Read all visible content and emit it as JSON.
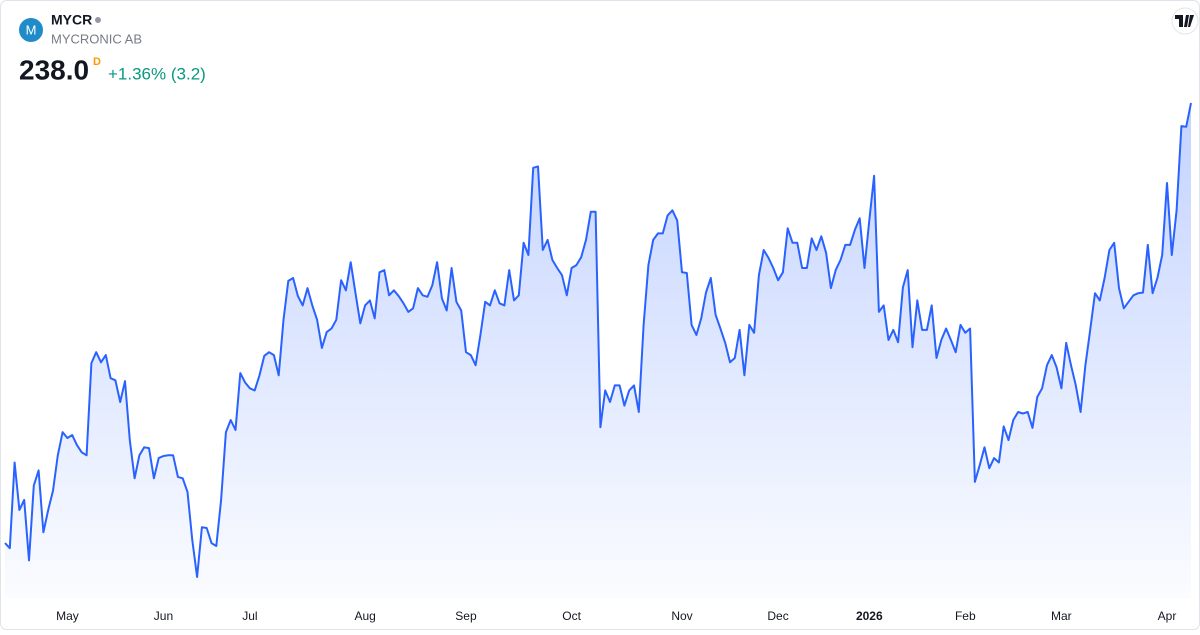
{
  "header": {
    "logo": "M",
    "symbol": "MYCR",
    "name": "MYCRONIC AB",
    "price": "238.0",
    "interval": "D",
    "change": "+1.36% (3.2)"
  },
  "chart_data": {
    "type": "area",
    "color": "#2962ff",
    "categories": [
      null,
      null,
      null,
      null,
      null,
      null,
      null,
      null,
      null,
      null,
      null,
      null,
      null,
      "May",
      null,
      null,
      null,
      null,
      null,
      null,
      null,
      null,
      null,
      null,
      null,
      null,
      null,
      null,
      null,
      null,
      null,
      null,
      null,
      "Jun",
      null,
      null,
      null,
      null,
      null,
      null,
      null,
      null,
      null,
      null,
      null,
      null,
      null,
      null,
      null,
      null,
      null,
      "Jul",
      null,
      null,
      null,
      null,
      null,
      null,
      null,
      null,
      null,
      null,
      null,
      null,
      null,
      null,
      null,
      null,
      null,
      null,
      null,
      null,
      null,
      null,
      null,
      "Aug",
      null,
      null,
      null,
      null,
      null,
      null,
      null,
      null,
      null,
      null,
      null,
      null,
      null,
      null,
      null,
      null,
      null,
      null,
      null,
      null,
      "Sep",
      null,
      null,
      null,
      null,
      null,
      null,
      null,
      null,
      null,
      null,
      null,
      null,
      null,
      null,
      null,
      null,
      null,
      null,
      null,
      null,
      null,
      "Oct",
      null,
      null,
      null,
      null,
      null,
      null,
      null,
      null,
      null,
      null,
      null,
      null,
      null,
      null,
      null,
      null,
      null,
      null,
      null,
      null,
      null,
      null,
      "Nov",
      null,
      null,
      null,
      null,
      null,
      null,
      null,
      null,
      null,
      null,
      null,
      null,
      null,
      null,
      null,
      null,
      null,
      null,
      null,
      "Dec",
      null,
      null,
      null,
      null,
      null,
      null,
      null,
      null,
      null,
      null,
      null,
      null,
      null,
      null,
      null,
      null,
      null,
      null,
      "2026",
      null,
      null,
      null,
      null,
      null,
      null,
      null,
      null,
      null,
      null,
      null,
      null,
      null,
      null,
      null,
      null,
      null,
      null,
      null,
      "Feb",
      null,
      null,
      null,
      null,
      null,
      null,
      null,
      null,
      null,
      null,
      null,
      null,
      null,
      null,
      null,
      null,
      null,
      null,
      null,
      "Mar",
      null,
      null,
      null,
      null,
      null,
      null,
      null,
      null,
      null,
      null,
      null,
      null,
      null,
      null,
      null,
      null,
      null,
      null,
      null,
      null,
      null,
      "Apr",
      null,
      null,
      null,
      null,
      null
    ],
    "values": [
      176.9,
      176.2,
      188.1,
      181.5,
      182.9,
      174.5,
      184.9,
      187.0,
      178.4,
      181.5,
      184.2,
      189.1,
      192.3,
      191.5,
      191.9,
      190.5,
      189.5,
      189.1,
      201.9,
      203.4,
      202.0,
      203.0,
      199.8,
      199.5,
      196.5,
      199.4,
      191.2,
      185.9,
      189.1,
      190.2,
      190.1,
      185.9,
      188.7,
      189.0,
      189.1,
      189.1,
      186.1,
      185.9,
      184.0,
      177.3,
      172.2,
      179.1,
      179.0,
      176.9,
      176.5,
      182.9,
      192.3,
      194.0,
      192.6,
      200.5,
      199.2,
      198.4,
      198.1,
      200.2,
      202.9,
      203.4,
      203.0,
      200.2,
      207.9,
      213.3,
      213.7,
      211.2,
      209.9,
      212.3,
      209.9,
      207.9,
      204.0,
      206.2,
      206.7,
      207.9,
      213.4,
      212.0,
      215.9,
      211.6,
      207.4,
      209.9,
      210.6,
      208.1,
      214.5,
      214.8,
      211.3,
      212.0,
      211.2,
      210.2,
      209.0,
      209.5,
      212.3,
      211.3,
      211.1,
      212.7,
      215.9,
      210.9,
      209.2,
      215.1,
      210.4,
      209.2,
      203.4,
      203.0,
      201.6,
      205.8,
      210.4,
      209.9,
      212.0,
      210.2,
      209.9,
      214.8,
      210.6,
      211.3,
      218.6,
      216.9,
      229.0,
      229.2,
      217.6,
      219.0,
      216.2,
      215.1,
      214.1,
      211.3,
      215.1,
      215.5,
      216.6,
      219.0,
      222.9,
      222.9,
      193.0,
      198.1,
      196.5,
      198.8,
      198.8,
      196.0,
      198.1,
      198.8,
      195.1,
      207.2,
      215.5,
      219.0,
      219.9,
      219.9,
      222.4,
      223.1,
      221.7,
      214.5,
      214.4,
      207.2,
      205.8,
      208.1,
      211.7,
      213.7,
      208.6,
      206.7,
      204.7,
      202.0,
      202.6,
      206.5,
      200.2,
      207.2,
      206.1,
      214.1,
      217.6,
      216.5,
      215.1,
      213.4,
      214.5,
      220.6,
      218.6,
      218.6,
      215.1,
      215.1,
      219.2,
      217.6,
      219.5,
      217.2,
      212.3,
      214.8,
      216.2,
      218.3,
      218.3,
      220.4,
      222.0,
      215.1,
      221.7,
      227.9,
      209.0,
      209.9,
      205.1,
      206.5,
      204.8,
      212.4,
      214.8,
      204.1,
      210.6,
      206.5,
      206.5,
      209.9,
      202.6,
      205.1,
      206.7,
      205.1,
      203.4,
      207.2,
      206.1,
      206.7,
      185.4,
      187.7,
      190.2,
      187.3,
      188.7,
      188.1,
      193.1,
      191.2,
      194.0,
      195.1,
      194.9,
      195.1,
      192.9,
      197.2,
      198.4,
      201.6,
      203.0,
      201.3,
      198.4,
      204.7,
      201.6,
      198.8,
      195.1,
      201.6,
      206.5,
      211.6,
      210.6,
      213.7,
      217.6,
      218.6,
      212.3,
      209.5,
      210.4,
      211.3,
      211.6,
      211.7,
      218.3,
      211.6,
      213.7,
      216.9,
      226.9,
      216.9,
      223.1,
      234.8,
      234.7,
      238.0
    ]
  }
}
